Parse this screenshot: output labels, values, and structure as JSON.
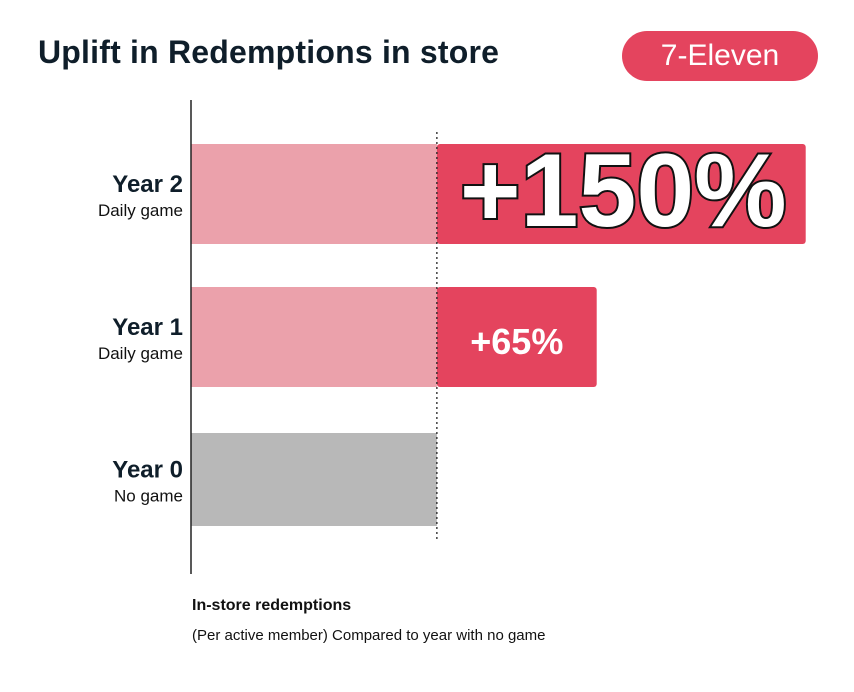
{
  "title": "Uplift in Redemptions in store",
  "brand_badge": "7-Eleven",
  "caption": {
    "title": "In-store redemptions",
    "subtitle": "(Per active member) Compared to year with no game"
  },
  "colors": {
    "baseline_bar": "#eba1ab",
    "uplift_bar": "#e4445e",
    "no_game_bar": "#b8b8b8",
    "text": "#0f1e2a"
  },
  "chart_data": {
    "type": "bar",
    "orientation": "horizontal",
    "categories": [
      "Year 2",
      "Year 1",
      "Year 0"
    ],
    "category_sublabels": [
      "Daily game",
      "Daily game",
      "No game"
    ],
    "baseline": 100,
    "values": [
      250,
      165,
      100
    ],
    "uplift_labels": [
      "+150%",
      "+65%",
      ""
    ],
    "xlim": [
      0,
      255
    ],
    "grid": false,
    "legend": "none"
  }
}
